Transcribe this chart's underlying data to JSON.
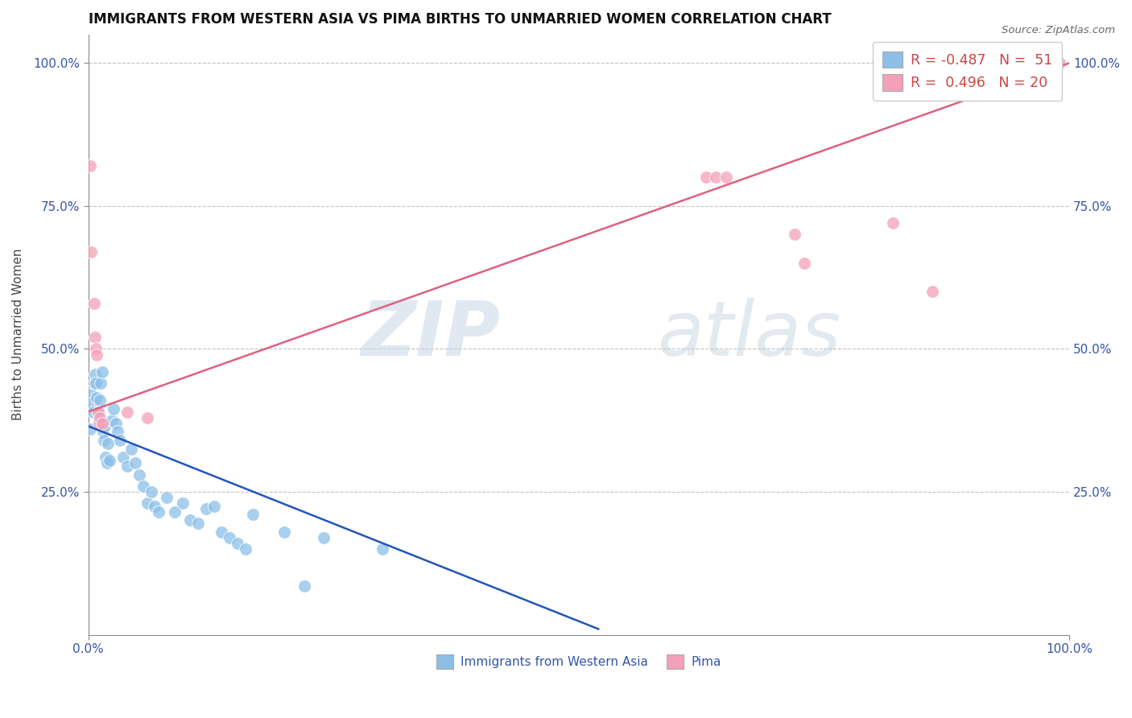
{
  "title": "IMMIGRANTS FROM WESTERN ASIA VS PIMA BIRTHS TO UNMARRIED WOMEN CORRELATION CHART",
  "source_text": "Source: ZipAtlas.com",
  "ylabel": "Births to Unmarried Women",
  "xlim": [
    0.0,
    1.0
  ],
  "ylim": [
    0.0,
    1.05
  ],
  "ytick_vals": [
    0.25,
    0.5,
    0.75,
    1.0
  ],
  "ytick_labels": [
    "25.0%",
    "50.0%",
    "75.0%",
    "100.0%"
  ],
  "xtick_vals": [
    0.0,
    1.0
  ],
  "xtick_labels": [
    "0.0%",
    "100.0%"
  ],
  "watermark_zip": "ZIP",
  "watermark_atlas": "atlas",
  "legend_r1": "R = -0.487",
  "legend_n1": "N =  51",
  "legend_r2": "R =  0.496",
  "legend_n2": "N = 20",
  "blue_color": "#8bbfe8",
  "pink_color": "#f4a0b8",
  "line_blue": "#2255bb",
  "line_pink": "#e06080",
  "title_color": "#111111",
  "source_color": "#666666",
  "axis_label_color": "#3355aa",
  "legend_r_color": "#cc4444",
  "legend_text_color": "#111111",
  "blue_scatter": [
    [
      0.002,
      0.36
    ],
    [
      0.003,
      0.42
    ],
    [
      0.004,
      0.405
    ],
    [
      0.005,
      0.39
    ],
    [
      0.006,
      0.44
    ],
    [
      0.007,
      0.455
    ],
    [
      0.008,
      0.44
    ],
    [
      0.009,
      0.415
    ],
    [
      0.01,
      0.39
    ],
    [
      0.011,
      0.375
    ],
    [
      0.012,
      0.41
    ],
    [
      0.013,
      0.44
    ],
    [
      0.014,
      0.46
    ],
    [
      0.015,
      0.355
    ],
    [
      0.016,
      0.34
    ],
    [
      0.017,
      0.365
    ],
    [
      0.018,
      0.31
    ],
    [
      0.019,
      0.3
    ],
    [
      0.02,
      0.335
    ],
    [
      0.022,
      0.305
    ],
    [
      0.024,
      0.375
    ],
    [
      0.026,
      0.395
    ],
    [
      0.028,
      0.37
    ],
    [
      0.03,
      0.355
    ],
    [
      0.032,
      0.34
    ],
    [
      0.036,
      0.31
    ],
    [
      0.04,
      0.295
    ],
    [
      0.044,
      0.325
    ],
    [
      0.048,
      0.3
    ],
    [
      0.052,
      0.28
    ],
    [
      0.056,
      0.26
    ],
    [
      0.06,
      0.23
    ],
    [
      0.064,
      0.25
    ],
    [
      0.068,
      0.225
    ],
    [
      0.072,
      0.215
    ],
    [
      0.08,
      0.24
    ],
    [
      0.088,
      0.215
    ],
    [
      0.096,
      0.23
    ],
    [
      0.104,
      0.2
    ],
    [
      0.112,
      0.195
    ],
    [
      0.12,
      0.22
    ],
    [
      0.128,
      0.225
    ],
    [
      0.136,
      0.18
    ],
    [
      0.144,
      0.17
    ],
    [
      0.152,
      0.16
    ],
    [
      0.16,
      0.15
    ],
    [
      0.168,
      0.21
    ],
    [
      0.2,
      0.18
    ],
    [
      0.22,
      0.085
    ],
    [
      0.24,
      0.17
    ],
    [
      0.3,
      0.15
    ]
  ],
  "pink_scatter": [
    [
      0.002,
      0.82
    ],
    [
      0.003,
      0.67
    ],
    [
      0.006,
      0.58
    ],
    [
      0.007,
      0.52
    ],
    [
      0.008,
      0.5
    ],
    [
      0.009,
      0.49
    ],
    [
      0.01,
      0.39
    ],
    [
      0.011,
      0.37
    ],
    [
      0.012,
      0.38
    ],
    [
      0.014,
      0.37
    ],
    [
      0.04,
      0.39
    ],
    [
      0.06,
      0.38
    ],
    [
      0.63,
      0.8
    ],
    [
      0.64,
      0.8
    ],
    [
      0.65,
      0.8
    ],
    [
      0.72,
      0.7
    ],
    [
      0.73,
      0.65
    ],
    [
      0.82,
      0.72
    ],
    [
      0.86,
      0.6
    ],
    [
      0.99,
      1.0
    ]
  ],
  "blue_line_x": [
    0.0,
    0.52
  ],
  "blue_line_y": [
    0.365,
    0.01
  ],
  "pink_line_x": [
    0.0,
    1.0
  ],
  "pink_line_y": [
    0.39,
    1.0
  ],
  "background_color": "#ffffff",
  "grid_color": "#bbbbbb"
}
